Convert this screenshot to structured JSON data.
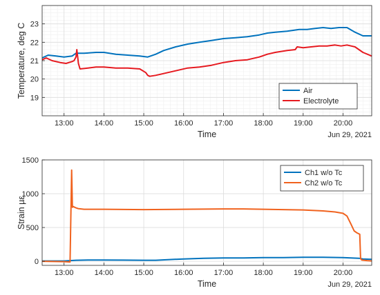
{
  "chart_data": [
    {
      "type": "line",
      "ylabel": "Temperature, deg C",
      "xlabel": "Time",
      "date_label": "Jun 29, 2021",
      "xlim": [
        12.45,
        20.72
      ],
      "ylim": [
        18,
        24
      ],
      "y_major_ticks": [
        19,
        20,
        21,
        22,
        23
      ],
      "x_ticks": [
        13,
        14,
        15,
        16,
        17,
        18,
        19,
        20
      ],
      "x_tick_labels": [
        "13:00",
        "14:00",
        "15:00",
        "16:00",
        "17:00",
        "18:00",
        "19:00",
        "20:00"
      ],
      "grid": "major and minor",
      "legend_position": "lower-right",
      "series": [
        {
          "name": "Air",
          "color": "#0072BD",
          "x": [
            12.45,
            12.6,
            12.8,
            13.0,
            13.2,
            13.3,
            13.5,
            13.8,
            14.0,
            14.3,
            14.6,
            14.9,
            15.1,
            15.3,
            15.5,
            15.8,
            16.1,
            16.4,
            16.7,
            17.0,
            17.3,
            17.6,
            17.9,
            18.1,
            18.3,
            18.6,
            18.9,
            19.1,
            19.3,
            19.5,
            19.7,
            19.9,
            20.1,
            20.3,
            20.5,
            20.72
          ],
          "y": [
            21.15,
            21.3,
            21.25,
            21.2,
            21.25,
            21.4,
            21.4,
            21.45,
            21.45,
            21.35,
            21.3,
            21.25,
            21.2,
            21.35,
            21.55,
            21.75,
            21.9,
            22.0,
            22.1,
            22.2,
            22.25,
            22.3,
            22.4,
            22.5,
            22.55,
            22.6,
            22.7,
            22.7,
            22.75,
            22.8,
            22.75,
            22.8,
            22.8,
            22.55,
            22.35,
            22.35
          ]
        },
        {
          "name": "Electrolyte",
          "color": "#E6191F",
          "x": [
            12.45,
            12.55,
            12.7,
            12.9,
            13.05,
            13.2,
            13.25,
            13.3,
            13.32,
            13.36,
            13.4,
            13.6,
            13.8,
            14.0,
            14.3,
            14.6,
            14.9,
            15.05,
            15.1,
            15.15,
            15.3,
            15.5,
            15.8,
            16.1,
            16.4,
            16.7,
            17.0,
            17.3,
            17.6,
            17.9,
            18.1,
            18.3,
            18.6,
            18.8,
            18.85,
            19.0,
            19.2,
            19.4,
            19.6,
            19.8,
            19.95,
            20.1,
            20.3,
            20.5,
            20.72
          ],
          "y": [
            21.05,
            21.15,
            21.0,
            20.9,
            20.85,
            20.95,
            21.0,
            21.2,
            21.6,
            20.85,
            20.55,
            20.6,
            20.65,
            20.65,
            20.6,
            20.6,
            20.55,
            20.35,
            20.2,
            20.15,
            20.2,
            20.3,
            20.45,
            20.6,
            20.65,
            20.75,
            20.9,
            21.0,
            21.05,
            21.2,
            21.35,
            21.45,
            21.55,
            21.6,
            21.75,
            21.7,
            21.75,
            21.8,
            21.8,
            21.85,
            21.8,
            21.85,
            21.75,
            21.45,
            21.25
          ]
        }
      ]
    },
    {
      "type": "line",
      "ylabel": "Strain µε",
      "xlabel": "Time",
      "date_label": "Jun 29, 2021",
      "xlim": [
        12.45,
        20.72
      ],
      "ylim": [
        -60,
        1500
      ],
      "y_major_ticks": [
        0,
        500,
        1000,
        1500
      ],
      "x_ticks": [
        13,
        14,
        15,
        16,
        17,
        18,
        19,
        20
      ],
      "x_tick_labels": [
        "13:00",
        "14:00",
        "15:00",
        "16:00",
        "17:00",
        "18:00",
        "19:00",
        "20:00"
      ],
      "grid": "major",
      "legend_position": "top-right",
      "series": [
        {
          "name": "Ch1 w/o Tc",
          "color": "#0072BD",
          "x": [
            12.45,
            13.0,
            13.15,
            13.3,
            13.6,
            14.0,
            14.5,
            15.0,
            15.3,
            15.6,
            16.0,
            16.5,
            17.0,
            17.5,
            18.0,
            18.5,
            19.0,
            19.5,
            20.0,
            20.2,
            20.4,
            20.5,
            20.72
          ],
          "y": [
            5,
            5,
            10,
            15,
            20,
            20,
            18,
            15,
            15,
            25,
            35,
            45,
            50,
            50,
            55,
            55,
            60,
            60,
            55,
            50,
            45,
            35,
            30
          ]
        },
        {
          "name": "Ch2 w/o Tc",
          "color": "#F0621E",
          "x": [
            12.45,
            13.0,
            13.15,
            13.19,
            13.21,
            13.23,
            13.3,
            13.35,
            13.5,
            14.0,
            15.0,
            16.0,
            17.0,
            17.5,
            18.0,
            18.5,
            19.0,
            19.5,
            19.8,
            20.0,
            20.1,
            20.2,
            20.28,
            20.35,
            20.42,
            20.44,
            20.47,
            20.6,
            20.72
          ],
          "y": [
            0,
            -5,
            -10,
            1350,
            800,
            810,
            790,
            780,
            770,
            770,
            765,
            770,
            775,
            775,
            770,
            765,
            760,
            745,
            730,
            710,
            670,
            550,
            450,
            420,
            400,
            40,
            20,
            10,
            5
          ]
        }
      ]
    }
  ]
}
